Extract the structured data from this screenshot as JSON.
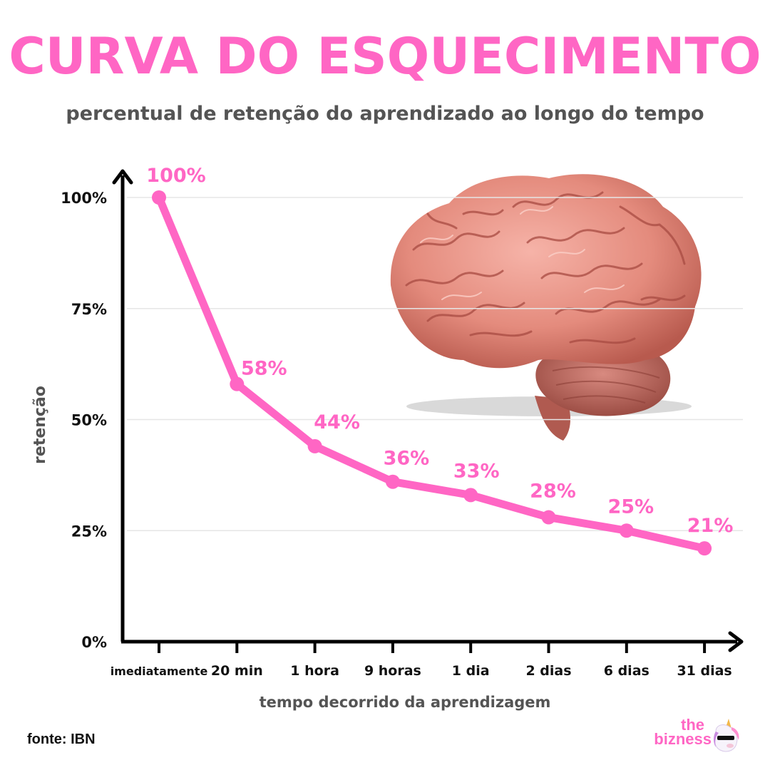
{
  "header": {
    "title": "CURVA DO ESQUECIMENTO",
    "subtitle": "percentual de retenção do aprendizado ao longo do tempo"
  },
  "chart_data": {
    "type": "line",
    "ylabel": "retenção",
    "xlabel": "tempo decorrido da aprendizagem",
    "ylim": [
      0,
      100
    ],
    "y_ticks": [
      "0%",
      "25%",
      "50%",
      "75%",
      "100%"
    ],
    "y_tick_values": [
      0,
      25,
      50,
      75,
      100
    ],
    "categories": [
      "imediatamente",
      "20 min",
      "1 hora",
      "9 horas",
      "1 dia",
      "2 dias",
      "6 dias",
      "31 dias"
    ],
    "values": [
      100,
      58,
      44,
      36,
      33,
      28,
      25,
      21
    ],
    "data_labels": [
      "100%",
      "58%",
      "44%",
      "36%",
      "33%",
      "28%",
      "25%",
      "21%"
    ],
    "grid": true,
    "line_color": "#ff66c4"
  },
  "footer": {
    "source": "fonte: IBN",
    "brand_the": "the",
    "brand_name": "bizness"
  },
  "illustration": {
    "icon": "brain-icon"
  },
  "colors": {
    "accent": "#ff66c4",
    "text_dark": "#111111",
    "text_gray": "#545454"
  }
}
